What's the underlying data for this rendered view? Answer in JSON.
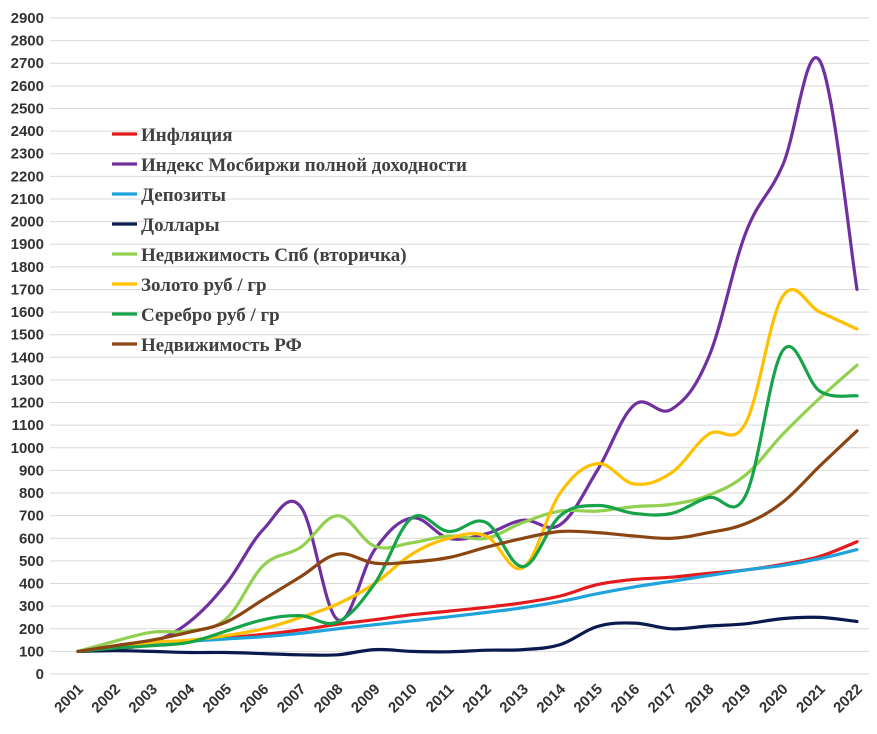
{
  "chart_data": {
    "type": "line",
    "title": "",
    "xlabel": "",
    "ylabel": "",
    "ylim": [
      0,
      2900
    ],
    "ytick_step": 100,
    "grid": true,
    "legend_position": "top-left",
    "x": [
      "2001",
      "2002",
      "2003",
      "2004",
      "2005",
      "2006",
      "2007",
      "2008",
      "2009",
      "2010",
      "2011",
      "2012",
      "2013",
      "2014",
      "2015",
      "2016",
      "2017",
      "2018",
      "2019",
      "2020",
      "2021",
      "2022"
    ],
    "series": [
      {
        "name": "Инфляция",
        "color": "#e41a1c",
        "values": [
          100,
          115,
          130,
          145,
          160,
          175,
          195,
          220,
          240,
          262,
          278,
          295,
          315,
          345,
          395,
          418,
          428,
          445,
          460,
          485,
          520,
          585
        ]
      },
      {
        "name": "Индекс Мосбиржи полной доходности",
        "color": "#7030a0",
        "values": [
          100,
          110,
          140,
          230,
          400,
          640,
          740,
          240,
          550,
          690,
          600,
          620,
          680,
          660,
          900,
          1190,
          1170,
          1400,
          1950,
          2250,
          2710,
          1700
        ]
      },
      {
        "name": "Депозиты",
        "color": "#1ea3dc",
        "values": [
          100,
          115,
          130,
          145,
          155,
          165,
          180,
          200,
          218,
          235,
          253,
          272,
          293,
          320,
          355,
          385,
          410,
          435,
          460,
          480,
          510,
          550
        ]
      },
      {
        "name": "Доллары",
        "color": "#0a1a4f",
        "values": [
          100,
          103,
          100,
          95,
          95,
          90,
          85,
          85,
          108,
          100,
          98,
          105,
          108,
          130,
          210,
          225,
          200,
          212,
          222,
          245,
          250,
          232
        ]
      },
      {
        "name": "Недвижимость Спб (вторичка)",
        "color": "#92d050",
        "values": [
          100,
          145,
          185,
          190,
          245,
          480,
          560,
          700,
          565,
          580,
          610,
          600,
          670,
          720,
          720,
          740,
          750,
          790,
          880,
          1060,
          1220,
          1365
        ]
      },
      {
        "name": "Золото руб / гр",
        "color": "#ffc000",
        "values": [
          100,
          120,
          140,
          150,
          170,
          200,
          250,
          310,
          400,
          530,
          600,
          610,
          470,
          800,
          930,
          840,
          890,
          1060,
          1110,
          1670,
          1600,
          1525
        ]
      },
      {
        "name": "Серебро руб / гр",
        "color": "#16a34a",
        "values": [
          100,
          115,
          125,
          140,
          190,
          240,
          258,
          230,
          400,
          690,
          630,
          670,
          475,
          700,
          745,
          710,
          710,
          780,
          790,
          1430,
          1250,
          1230
        ]
      },
      {
        "name": "Недвижимость РФ",
        "color": "#8b4513",
        "values": [
          100,
          125,
          150,
          185,
          230,
          330,
          430,
          530,
          490,
          495,
          515,
          560,
          600,
          630,
          625,
          610,
          600,
          625,
          665,
          760,
          920,
          1075
        ]
      }
    ]
  }
}
